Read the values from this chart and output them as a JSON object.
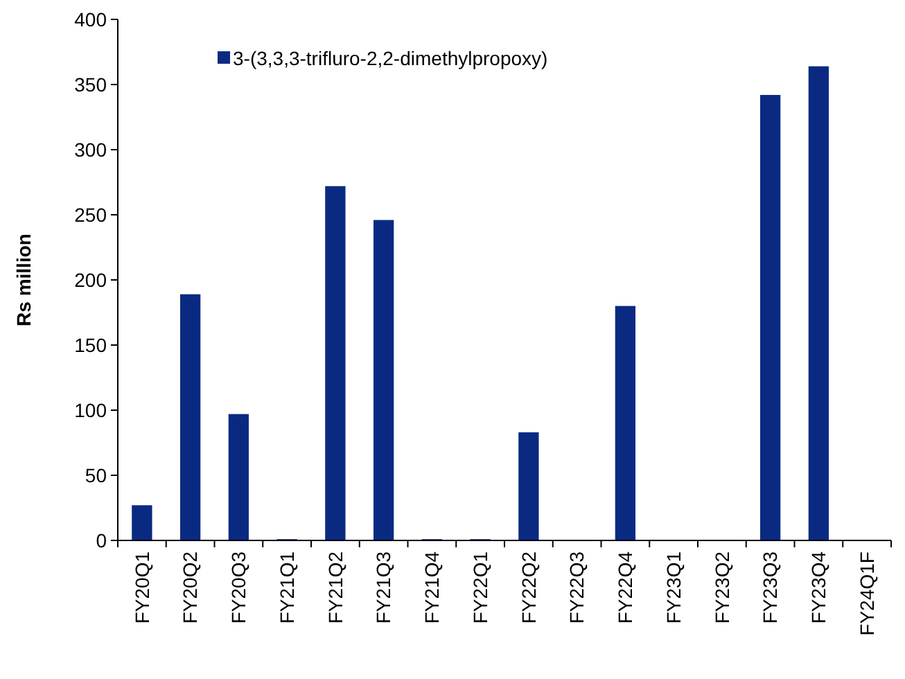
{
  "chart_data": {
    "type": "bar",
    "ylabel": "Rs million",
    "categories": [
      "FY20Q1",
      "FY20Q2",
      "FY20Q3",
      "FY21Q1",
      "FY21Q2",
      "FY21Q3",
      "FY21Q4",
      "FY22Q1",
      "FY22Q2",
      "FY22Q3",
      "FY22Q4",
      "FY23Q1",
      "FY23Q2",
      "FY23Q3",
      "FY23Q4",
      "FY24Q1F"
    ],
    "series": [
      {
        "name": "3-(3,3,3-trifluro-2,2-dimethylpropoxy)",
        "color": "#0a2a82",
        "values": [
          27,
          189,
          97,
          1,
          272,
          246,
          1,
          1,
          83,
          0,
          180,
          0,
          0,
          342,
          364,
          0
        ]
      }
    ],
    "ylim": [
      0,
      400
    ],
    "yticks": [
      0,
      50,
      100,
      150,
      200,
      250,
      300,
      350,
      400
    ],
    "grid": false,
    "legend": "top"
  }
}
